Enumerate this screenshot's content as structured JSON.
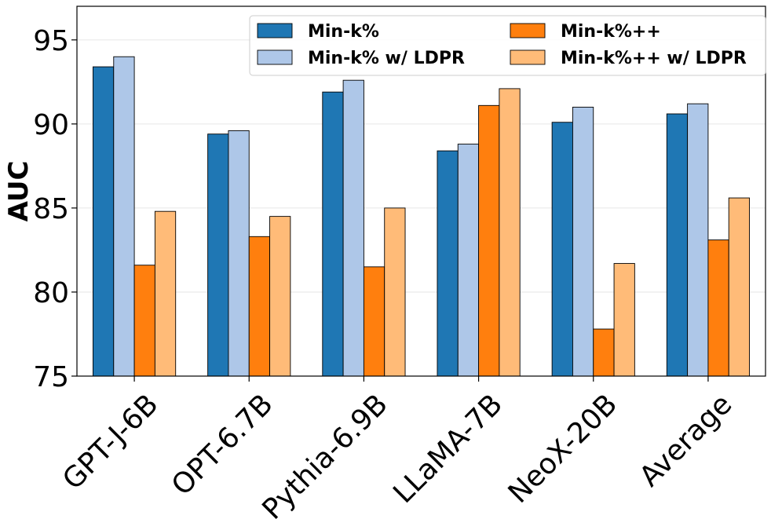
{
  "chart_data": {
    "type": "bar",
    "title": "",
    "xlabel": "",
    "ylabel": "AUC",
    "ylim": [
      75,
      97
    ],
    "yticks": [
      75,
      80,
      85,
      90,
      95
    ],
    "grid": "horizontal",
    "legend_position": "top-right",
    "categories": [
      "GPT-J-6B",
      "OPT-6.7B",
      "Pythia-6.9B",
      "LLaMA-7B",
      "NeoX-20B",
      "Average"
    ],
    "series": [
      {
        "name": "Min-k%",
        "color": "#1f77b4",
        "values": [
          93.4,
          89.4,
          91.9,
          88.4,
          90.1,
          90.6
        ]
      },
      {
        "name": "Min-k% w/ LDPR",
        "color": "#aec7e8",
        "values": [
          94.0,
          89.6,
          92.6,
          88.8,
          91.0,
          91.2
        ]
      },
      {
        "name": "Min-k%++",
        "color": "#ff7f0e",
        "values": [
          81.6,
          83.3,
          81.5,
          91.1,
          77.8,
          83.1
        ]
      },
      {
        "name": "Min-k%++ w/ LDPR",
        "color": "#ffbb78",
        "values": [
          84.8,
          84.5,
          85.0,
          92.1,
          81.7,
          85.6
        ]
      }
    ]
  }
}
